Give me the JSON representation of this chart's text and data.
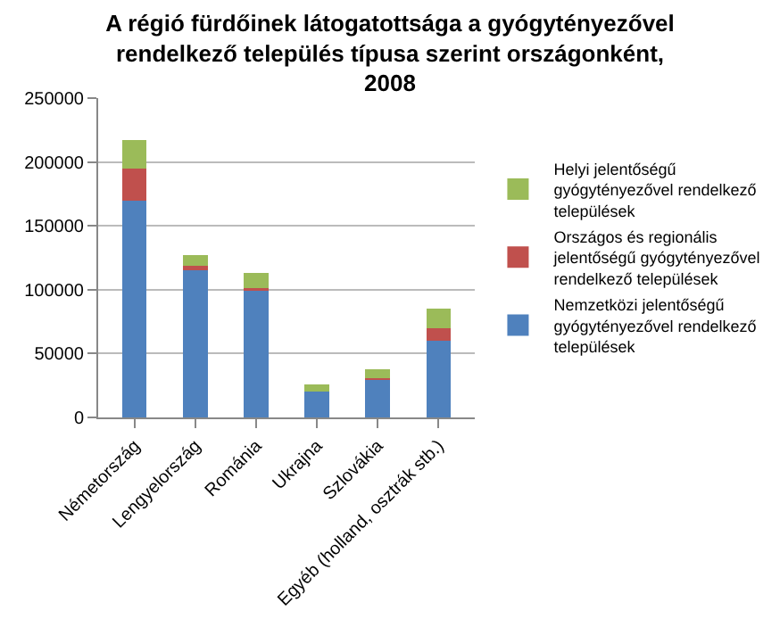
{
  "chart_data": {
    "type": "bar",
    "title": "A régió fürdőinek látogatottsága a gyógytényezővel rendelkező település típusa szerint országonként, 2008",
    "categories": [
      "Németország",
      "Lengyelország",
      "Románia",
      "Ukrajna",
      "Szlovákia",
      "Egyéb (holland, osztrák stb.)"
    ],
    "stacked": true,
    "series": [
      {
        "name": "Nemzetközi jelentőségű gyógytényezővel rendelkező települések",
        "color": "#4f81bd",
        "values": [
          170000,
          115000,
          100000,
          20000,
          30000,
          60000
        ]
      },
      {
        "name": "Országos és regionális jelentőségű gyógytényezővel rendelkező települések",
        "color": "#c0504d",
        "values": [
          25000,
          4000,
          1000,
          0,
          1000,
          10000
        ]
      },
      {
        "name": "Helyi jelentőségű gyógytényezővel rendelkező települések",
        "color": "#9bbb59",
        "values": [
          22000,
          8000,
          12000,
          6000,
          7000,
          15000
        ]
      }
    ],
    "ylim": [
      0,
      250000
    ],
    "yticks": [
      0,
      50000,
      100000,
      150000,
      200000,
      250000
    ],
    "grid": "y",
    "legend": "right"
  }
}
